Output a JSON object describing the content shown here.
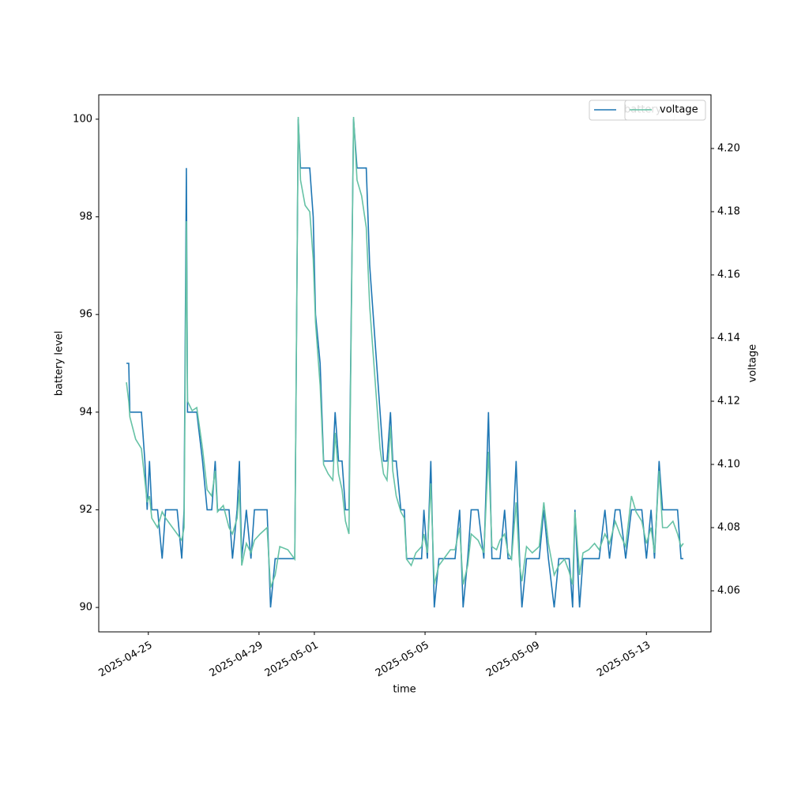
{
  "chart_data": {
    "type": "line",
    "xlabel": "time",
    "ylabel": "battery level",
    "y2label": "voltage",
    "x": [
      "2025-04-24T05:00",
      "2025-04-24T07:00",
      "2025-04-24T08:00",
      "2025-04-24T13:00",
      "2025-04-24T18:00",
      "2025-04-24T21:00",
      "2025-04-24T23:00",
      "2025-04-25T01:00",
      "2025-04-25T03:00",
      "2025-04-25T08:00",
      "2025-04-25T12:00",
      "2025-04-25T15:00",
      "2025-04-25T21:00",
      "2025-04-26T01:00",
      "2025-04-26T05:00",
      "2025-04-26T07:00",
      "2025-04-26T09:00",
      "2025-04-26T10:00",
      "2025-04-26T14:00",
      "2025-04-26T18:00",
      "2025-04-26T23:00",
      "2025-04-27T03:00",
      "2025-04-27T07:00",
      "2025-04-27T10:00",
      "2025-04-27T12:00",
      "2025-04-27T17:00",
      "2025-04-27T22:00",
      "2025-04-28T01:00",
      "2025-04-28T05:00",
      "2025-04-28T07:00",
      "2025-04-28T09:00",
      "2025-04-28T13:00",
      "2025-04-28T17:00",
      "2025-04-28T20:00",
      "2025-04-29T01:00",
      "2025-04-29T07:00",
      "2025-04-29T10:00",
      "2025-04-29T14:00",
      "2025-04-29T18:00",
      "2025-04-30T01:00",
      "2025-04-30T07:00",
      "2025-04-30T10:00",
      "2025-04-30T12:00",
      "2025-04-30T16:00",
      "2025-04-30T20:00",
      "2025-04-30T23:00",
      "2025-05-01T01:00",
      "2025-05-01T05:00",
      "2025-05-01T08:00",
      "2025-05-01T12:00",
      "2025-05-01T16:00",
      "2025-05-01T18:00",
      "2025-05-01T21:00",
      "2025-05-02T00:00",
      "2025-05-02T03:00",
      "2025-05-02T06:00",
      "2025-05-02T10:00",
      "2025-05-02T13:00",
      "2025-05-02T17:00",
      "2025-05-02T21:00",
      "2025-05-03T00:00",
      "2025-05-03T03:00",
      "2025-05-03T06:00",
      "2025-05-03T09:00",
      "2025-05-03T12:00",
      "2025-05-03T15:00",
      "2025-05-03T18:00",
      "2025-05-03T20:00",
      "2025-05-03T23:00",
      "2025-05-04T03:00",
      "2025-05-04T06:00",
      "2025-05-04T08:00",
      "2025-05-04T12:00",
      "2025-05-04T16:00",
      "2025-05-04T21:00",
      "2025-05-04T23:00",
      "2025-05-05T02:00",
      "2025-05-05T05:00",
      "2025-05-05T08:00",
      "2025-05-05T12:00",
      "2025-05-05T16:00",
      "2025-05-05T22:00",
      "2025-05-06T02:00",
      "2025-05-06T06:00",
      "2025-05-06T09:00",
      "2025-05-06T13:00",
      "2025-05-06T16:00",
      "2025-05-06T22:00",
      "2025-05-07T03:00",
      "2025-05-07T07:00",
      "2025-05-07T10:00",
      "2025-05-07T14:00",
      "2025-05-07T17:00",
      "2025-05-07T21:00",
      "2025-05-08T00:00",
      "2025-05-08T03:00",
      "2025-05-08T07:00",
      "2025-05-08T10:00",
      "2025-05-08T12:00",
      "2025-05-08T16:00",
      "2025-05-08T21:00",
      "2025-05-09T03:00",
      "2025-05-09T07:00",
      "2025-05-09T11:00",
      "2025-05-09T16:00",
      "2025-05-09T20:00",
      "2025-05-10T01:00",
      "2025-05-10T05:00",
      "2025-05-10T08:00",
      "2025-05-10T10:00",
      "2025-05-10T14:00",
      "2025-05-10T17:00",
      "2025-05-10T22:00",
      "2025-05-11T03:00",
      "2025-05-11T07:00",
      "2025-05-11T12:00",
      "2025-05-11T16:00",
      "2025-05-11T21:00",
      "2025-05-12T01:00",
      "2025-05-12T06:00",
      "2025-05-12T11:00",
      "2025-05-12T15:00",
      "2025-05-12T20:00",
      "2025-05-13T00:00",
      "2025-05-13T04:00",
      "2025-05-13T07:00",
      "2025-05-13T11:00",
      "2025-05-13T14:00",
      "2025-05-13T18:00",
      "2025-05-13T23:00",
      "2025-05-14T03:00",
      "2025-05-14T06:00",
      "2025-05-14T08:00"
    ],
    "series": [
      {
        "name": "battery",
        "color": "#1f77b4",
        "axis": "y",
        "values": [
          95,
          95,
          94,
          94,
          94,
          93,
          92,
          93,
          92,
          92,
          91,
          92,
          92,
          92,
          91,
          92,
          99,
          94,
          94,
          94,
          93,
          92,
          92,
          93,
          92,
          92,
          92,
          91,
          92,
          93,
          91,
          92,
          91,
          92,
          92,
          92,
          90,
          91,
          91,
          91,
          91,
          100,
          99,
          99,
          99,
          98,
          96,
          95,
          93,
          93,
          93,
          94,
          93,
          93,
          92,
          92,
          100,
          99,
          99,
          99,
          97,
          96,
          95,
          94,
          93,
          93,
          94,
          93,
          93,
          92,
          92,
          91,
          91,
          91,
          91,
          92,
          91,
          93,
          90,
          91,
          91,
          91,
          91,
          92,
          90,
          91,
          92,
          92,
          91,
          94,
          91,
          91,
          91,
          92,
          91,
          91,
          93,
          91,
          90,
          91,
          91,
          91,
          92,
          91,
          90,
          91,
          91,
          91,
          90,
          92,
          90,
          91,
          91,
          91,
          91,
          92,
          91,
          92,
          92,
          91,
          92,
          92,
          92,
          91,
          92,
          91,
          93,
          92,
          92,
          92,
          92,
          91,
          91
        ]
      },
      {
        "name": "voltage",
        "color": "#66c2a5",
        "axis": "y2",
        "values": [
          4.126,
          4.12,
          4.115,
          4.108,
          4.105,
          4.095,
          4.088,
          4.09,
          4.083,
          4.08,
          4.085,
          4.083,
          4.08,
          4.078,
          4.076,
          4.08,
          4.177,
          4.12,
          4.117,
          4.118,
          4.105,
          4.092,
          4.09,
          4.098,
          4.085,
          4.087,
          4.08,
          4.078,
          4.083,
          4.092,
          4.068,
          4.075,
          4.072,
          4.076,
          4.078,
          4.08,
          4.061,
          4.065,
          4.074,
          4.073,
          4.07,
          4.21,
          4.19,
          4.182,
          4.18,
          4.165,
          4.145,
          4.125,
          4.1,
          4.097,
          4.095,
          4.11,
          4.097,
          4.092,
          4.082,
          4.078,
          4.21,
          4.19,
          4.185,
          4.175,
          4.15,
          4.135,
          4.12,
          4.105,
          4.097,
          4.095,
          4.112,
          4.098,
          4.09,
          4.085,
          4.083,
          4.07,
          4.068,
          4.072,
          4.074,
          4.078,
          4.072,
          4.094,
          4.062,
          4.068,
          4.07,
          4.073,
          4.073,
          4.08,
          4.062,
          4.068,
          4.078,
          4.076,
          4.072,
          4.104,
          4.074,
          4.073,
          4.076,
          4.078,
          4.072,
          4.07,
          4.088,
          4.068,
          4.063,
          4.074,
          4.072,
          4.074,
          4.088,
          4.075,
          4.065,
          4.068,
          4.07,
          4.066,
          4.062,
          4.085,
          4.065,
          4.072,
          4.073,
          4.075,
          4.073,
          4.078,
          4.075,
          4.082,
          4.078,
          4.074,
          4.09,
          4.085,
          4.082,
          4.075,
          4.08,
          4.072,
          4.098,
          4.08,
          4.08,
          4.082,
          4.078,
          4.074,
          4.075
        ]
      }
    ],
    "xlim": [
      "2025-04-23T05:00",
      "2025-05-15T08:00"
    ],
    "xticks": [
      "2025-04-25",
      "2025-04-29",
      "2025-05-01",
      "2025-05-05",
      "2025-05-09",
      "2025-05-13"
    ],
    "ylim": [
      89.5,
      100.5
    ],
    "yticks": [
      90,
      92,
      94,
      96,
      98,
      100
    ],
    "y2lim": [
      4.047,
      4.217
    ],
    "y2ticks": [
      4.06,
      4.08,
      {
        "value": 4.1,
        "label": "4.10"
      },
      4.12,
      4.14,
      4.16,
      4.18,
      {
        "value": 4.2,
        "label": "4.20"
      }
    ],
    "legend": "upper right"
  }
}
